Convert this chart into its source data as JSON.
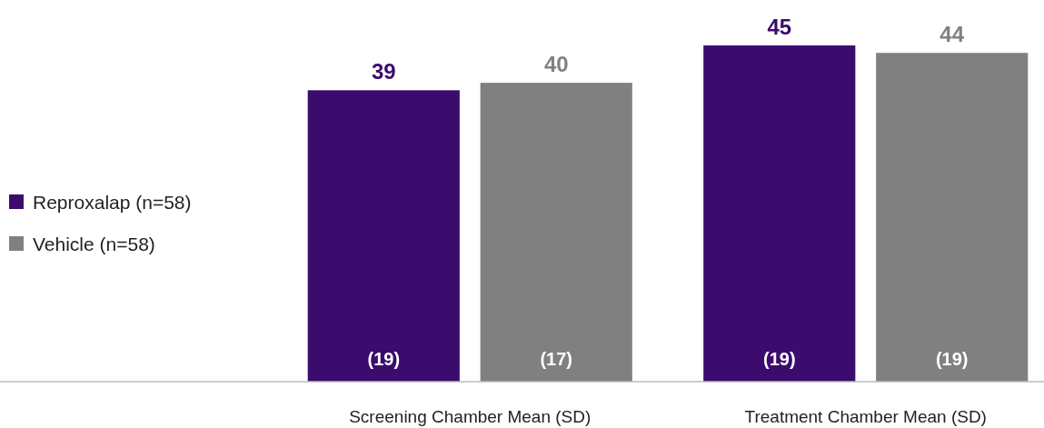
{
  "chart_data": {
    "type": "bar",
    "categories": [
      "Screening Chamber Mean (SD)",
      "Treatment Chamber Mean (SD)"
    ],
    "series": [
      {
        "name": "Reproxalap (n=58)",
        "color": "#3c0b6e",
        "values": [
          39,
          45
        ]
      },
      {
        "name": "Vehicle (n=58)",
        "color": "#808080",
        "values": [
          40,
          44
        ]
      }
    ],
    "data_labels": true,
    "legend": "left",
    "annotations": [
      "(19)",
      "(17)",
      "(19)",
      "(19)"
    ]
  }
}
